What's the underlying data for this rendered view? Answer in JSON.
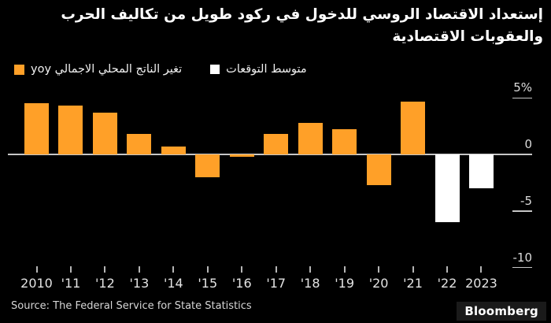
{
  "title": {
    "line1": "إستعداد الاقتصاد الروسي للدخول في ركود طويل من تكاليف الحرب",
    "line2": "والعقوبات الاقتصادية"
  },
  "legend": [
    {
      "label": "تغير الناتج المحلي الاجمالي yoy",
      "color": "#FFA028"
    },
    {
      "label": "متوسط التوقعات",
      "color": "#FFFFFF"
    }
  ],
  "chart_data": {
    "type": "bar",
    "title": "إستعداد الاقتصاد الروسي للدخول في ركود طويل من تكاليف الحرب والعقوبات الاقتصادية",
    "categories": [
      "2010",
      "'11",
      "'12",
      "'13",
      "'14",
      "'15",
      "'16",
      "'17",
      "'18",
      "'19",
      "'20",
      "'21",
      "'22",
      "2023"
    ],
    "series": [
      {
        "name": "تغير الناتج المحلي الاجمالي yoy",
        "color": "#FFA028",
        "values": [
          4.5,
          4.3,
          3.7,
          1.8,
          0.7,
          -2.0,
          -0.2,
          1.8,
          2.8,
          2.2,
          -2.7,
          4.7,
          null,
          null
        ]
      },
      {
        "name": "متوسط التوقعات",
        "color": "#FFFFFF",
        "values": [
          null,
          null,
          null,
          null,
          null,
          null,
          null,
          null,
          null,
          null,
          null,
          null,
          -6.0,
          -3.0
        ]
      }
    ],
    "y_ticks": [
      {
        "value": 5,
        "label": "5%"
      },
      {
        "value": 0,
        "label": "0"
      },
      {
        "value": -5,
        "label": "-5"
      },
      {
        "value": -10,
        "label": "-10"
      }
    ],
    "ylim": [
      -10.5,
      6.7
    ],
    "ylabel": "%",
    "grid": false,
    "legend_position": "top-left",
    "background": "#000000",
    "axis_color": "#C6C6C6"
  },
  "source": "Source: The Federal Service for State Statistics",
  "branding": "Bloomberg"
}
